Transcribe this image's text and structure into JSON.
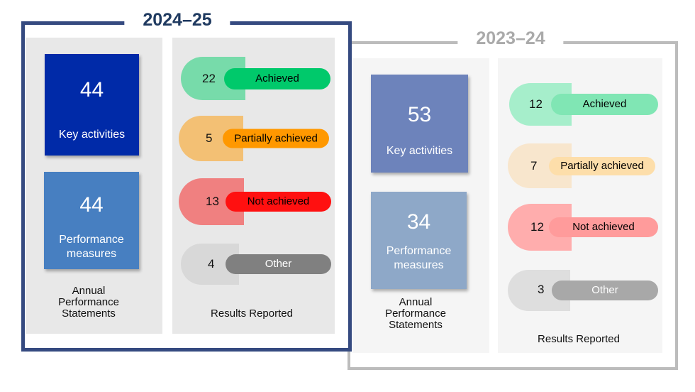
{
  "y2023": {
    "title": "2023–24",
    "key_activities": {
      "value": "53",
      "label": "Key activities"
    },
    "performance_measures": {
      "value": "34",
      "label": "Performance measures"
    },
    "aps_caption": "Annual Performance Statements",
    "results_caption": "Results Reported",
    "results": [
      {
        "value": "12",
        "label": "Achieved"
      },
      {
        "value": "7",
        "label": "Partially achieved"
      },
      {
        "value": "12",
        "label": "Not achieved"
      },
      {
        "value": "3",
        "label": "Other"
      }
    ]
  },
  "y2024": {
    "title": "2024–25",
    "key_activities": {
      "value": "44",
      "label": "Key activities"
    },
    "performance_measures": {
      "value": "44",
      "label": "Performance measures"
    },
    "aps_caption": "Annual Performance Statements",
    "results_caption": "Results Reported",
    "results": [
      {
        "value": "22",
        "label": "Achieved"
      },
      {
        "value": "5",
        "label": "Partially achieved"
      },
      {
        "value": "13",
        "label": "Not achieved"
      },
      {
        "value": "4",
        "label": "Other"
      }
    ]
  },
  "colors": {
    "frame_2024": "#354a80",
    "frame_2023": "#bcbcbc",
    "achieved": "#00c96b",
    "partially_achieved": "#ff9800",
    "not_achieved": "#ff1010",
    "other": "#808080"
  }
}
